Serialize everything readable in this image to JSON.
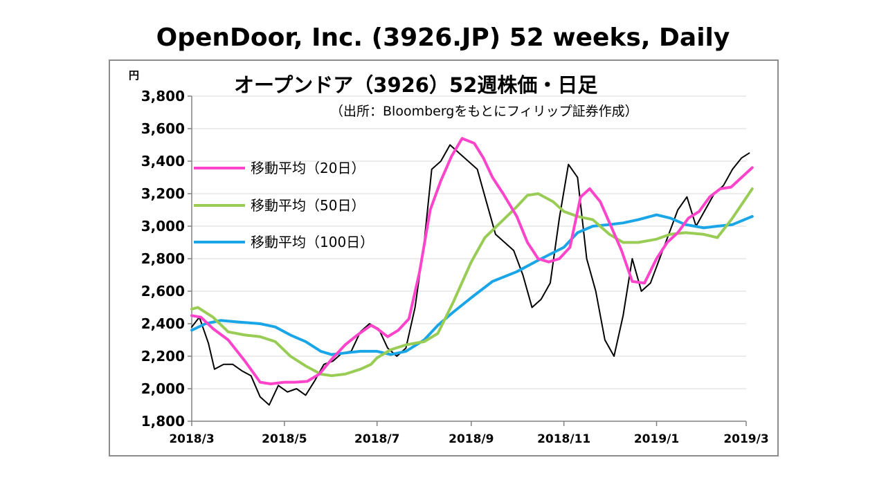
{
  "slide_title": "OpenDoor, Inc. (3926.JP) 52 weeks, Daily",
  "chart_data": {
    "type": "line",
    "title": "オープンドア（3926）52週株価・日足",
    "subtitle": "（出所：Bloombergをもとにフィリップ証券作成）",
    "y_unit": "円",
    "ylim": [
      1800,
      3800
    ],
    "y_ticks": [
      "3,800",
      "3,600",
      "3,400",
      "3,200",
      "3,000",
      "2,800",
      "2,600",
      "2,400",
      "2,200",
      "2,000",
      "1,800"
    ],
    "x_tick_labels": [
      "2018/3",
      "2018/5",
      "2018/7",
      "2018/9",
      "2018/11",
      "2019/1",
      "2019/3"
    ],
    "x_tick_dates": [
      "2018-03-01",
      "2018-05-01",
      "2018-07-01",
      "2018-09-01",
      "2018-11-01",
      "2019-01-01",
      "2019-03-01"
    ],
    "xlim": [
      "2018-03-01",
      "2019-03-01"
    ],
    "grid": "horizontal",
    "legend_placement": "upper-left inside",
    "series": [
      {
        "name": "移動平均（20日）",
        "color": "#ff44cc",
        "x": [
          "2018-03-01",
          "2018-03-07",
          "2018-03-15",
          "2018-03-25",
          "2018-04-05",
          "2018-04-15",
          "2018-04-22",
          "2018-05-01",
          "2018-05-08",
          "2018-05-16",
          "2018-05-24",
          "2018-06-01",
          "2018-06-10",
          "2018-06-18",
          "2018-06-27",
          "2018-07-01",
          "2018-07-08",
          "2018-07-15",
          "2018-07-22",
          "2018-07-29",
          "2018-08-05",
          "2018-08-12",
          "2018-08-19",
          "2018-08-26",
          "2018-09-03",
          "2018-09-09",
          "2018-09-15",
          "2018-09-22",
          "2018-10-01",
          "2018-10-08",
          "2018-10-15",
          "2018-10-22",
          "2018-10-29",
          "2018-11-05",
          "2018-11-12",
          "2018-11-18",
          "2018-11-25",
          "2018-12-02",
          "2018-12-09",
          "2018-12-16",
          "2018-12-24",
          "2019-01-01",
          "2019-01-08",
          "2019-01-15",
          "2019-01-22",
          "2019-01-29",
          "2019-02-05",
          "2019-02-12",
          "2019-02-19",
          "2019-02-26",
          "2019-03-05"
        ],
        "y": [
          2450,
          2440,
          2370,
          2300,
          2170,
          2040,
          2030,
          2040,
          2040,
          2045,
          2090,
          2180,
          2270,
          2330,
          2390,
          2370,
          2320,
          2360,
          2430,
          2720,
          3100,
          3280,
          3430,
          3540,
          3510,
          3420,
          3300,
          3200,
          3060,
          2900,
          2800,
          2780,
          2800,
          2870,
          3180,
          3230,
          3150,
          3000,
          2850,
          2660,
          2650,
          2800,
          2900,
          2960,
          3050,
          3090,
          3180,
          3230,
          3240,
          3300,
          3360
        ]
      },
      {
        "name": "移動平均（50日）",
        "color": "#99cc55",
        "x": [
          "2018-03-01",
          "2018-03-05",
          "2018-03-15",
          "2018-03-25",
          "2018-04-05",
          "2018-04-15",
          "2018-04-25",
          "2018-05-05",
          "2018-05-15",
          "2018-05-25",
          "2018-06-01",
          "2018-06-10",
          "2018-06-20",
          "2018-06-27",
          "2018-07-01",
          "2018-07-10",
          "2018-07-20",
          "2018-08-01",
          "2018-08-10",
          "2018-08-20",
          "2018-09-01",
          "2018-09-10",
          "2018-09-20",
          "2018-10-01",
          "2018-10-08",
          "2018-10-15",
          "2018-10-25",
          "2018-11-01",
          "2018-11-10",
          "2018-11-20",
          "2018-12-01",
          "2018-12-10",
          "2018-12-20",
          "2019-01-01",
          "2019-01-10",
          "2019-01-20",
          "2019-02-01",
          "2019-02-10",
          "2019-02-20",
          "2019-03-05"
        ],
        "y": [
          2490,
          2500,
          2440,
          2350,
          2330,
          2320,
          2290,
          2200,
          2140,
          2090,
          2080,
          2090,
          2120,
          2150,
          2190,
          2240,
          2270,
          2290,
          2340,
          2530,
          2780,
          2930,
          3020,
          3120,
          3190,
          3200,
          3150,
          3090,
          3060,
          3040,
          2950,
          2900,
          2900,
          2920,
          2950,
          2960,
          2950,
          2930,
          3050,
          3230
        ]
      },
      {
        "name": "移動平均（100日）",
        "color": "#1aa6e6",
        "x": [
          "2018-03-01",
          "2018-03-10",
          "2018-03-20",
          "2018-04-01",
          "2018-04-15",
          "2018-04-25",
          "2018-05-05",
          "2018-05-15",
          "2018-05-25",
          "2018-06-01",
          "2018-06-10",
          "2018-06-20",
          "2018-07-01",
          "2018-07-10",
          "2018-07-20",
          "2018-08-01",
          "2018-08-10",
          "2018-08-20",
          "2018-09-01",
          "2018-09-15",
          "2018-10-01",
          "2018-10-15",
          "2018-11-01",
          "2018-11-10",
          "2018-11-20",
          "2018-12-01",
          "2018-12-10",
          "2018-12-20",
          "2019-01-01",
          "2019-01-10",
          "2019-01-20",
          "2019-02-01",
          "2019-02-10",
          "2019-02-20",
          "2019-03-05"
        ],
        "y": [
          2360,
          2400,
          2420,
          2410,
          2400,
          2380,
          2330,
          2290,
          2230,
          2210,
          2220,
          2230,
          2230,
          2210,
          2230,
          2300,
          2390,
          2470,
          2560,
          2660,
          2720,
          2790,
          2870,
          2960,
          3000,
          3010,
          3020,
          3040,
          3070,
          3050,
          3010,
          2990,
          3000,
          3010,
          3060
        ]
      },
      {
        "name": "",
        "color": "#000000",
        "x": [
          "2018-03-01",
          "2018-03-06",
          "2018-03-12",
          "2018-03-16",
          "2018-03-22",
          "2018-03-28",
          "2018-04-03",
          "2018-04-09",
          "2018-04-15",
          "2018-04-21",
          "2018-04-27",
          "2018-05-03",
          "2018-05-09",
          "2018-05-15",
          "2018-05-21",
          "2018-05-27",
          "2018-06-02",
          "2018-06-08",
          "2018-06-14",
          "2018-06-20",
          "2018-06-26",
          "2018-07-02",
          "2018-07-08",
          "2018-07-14",
          "2018-07-20",
          "2018-07-26",
          "2018-08-01",
          "2018-08-06",
          "2018-08-12",
          "2018-08-18",
          "2018-08-24",
          "2018-08-30",
          "2018-09-05",
          "2018-09-11",
          "2018-09-17",
          "2018-09-23",
          "2018-09-29",
          "2018-10-05",
          "2018-10-11",
          "2018-10-17",
          "2018-10-23",
          "2018-10-29",
          "2018-11-04",
          "2018-11-10",
          "2018-11-16",
          "2018-11-22",
          "2018-11-28",
          "2018-12-04",
          "2018-12-10",
          "2018-12-16",
          "2018-12-22",
          "2018-12-28",
          "2019-01-03",
          "2019-01-09",
          "2019-01-15",
          "2019-01-21",
          "2019-01-27",
          "2019-02-02",
          "2019-02-08",
          "2019-02-14",
          "2019-02-20",
          "2019-02-26",
          "2019-03-03"
        ],
        "y": [
          2380,
          2440,
          2280,
          2120,
          2150,
          2150,
          2110,
          2080,
          1950,
          1900,
          2020,
          1980,
          2000,
          1960,
          2050,
          2150,
          2170,
          2220,
          2230,
          2350,
          2400,
          2370,
          2250,
          2200,
          2250,
          2500,
          2900,
          3350,
          3400,
          3500,
          3450,
          3400,
          3350,
          3150,
          2950,
          2900,
          2850,
          2700,
          2500,
          2550,
          2650,
          3050,
          3380,
          3300,
          2800,
          2600,
          2300,
          2200,
          2450,
          2800,
          2600,
          2650,
          2800,
          2950,
          3100,
          3180,
          3000,
          3100,
          3200,
          3250,
          3350,
          3420,
          3450
        ]
      }
    ]
  }
}
